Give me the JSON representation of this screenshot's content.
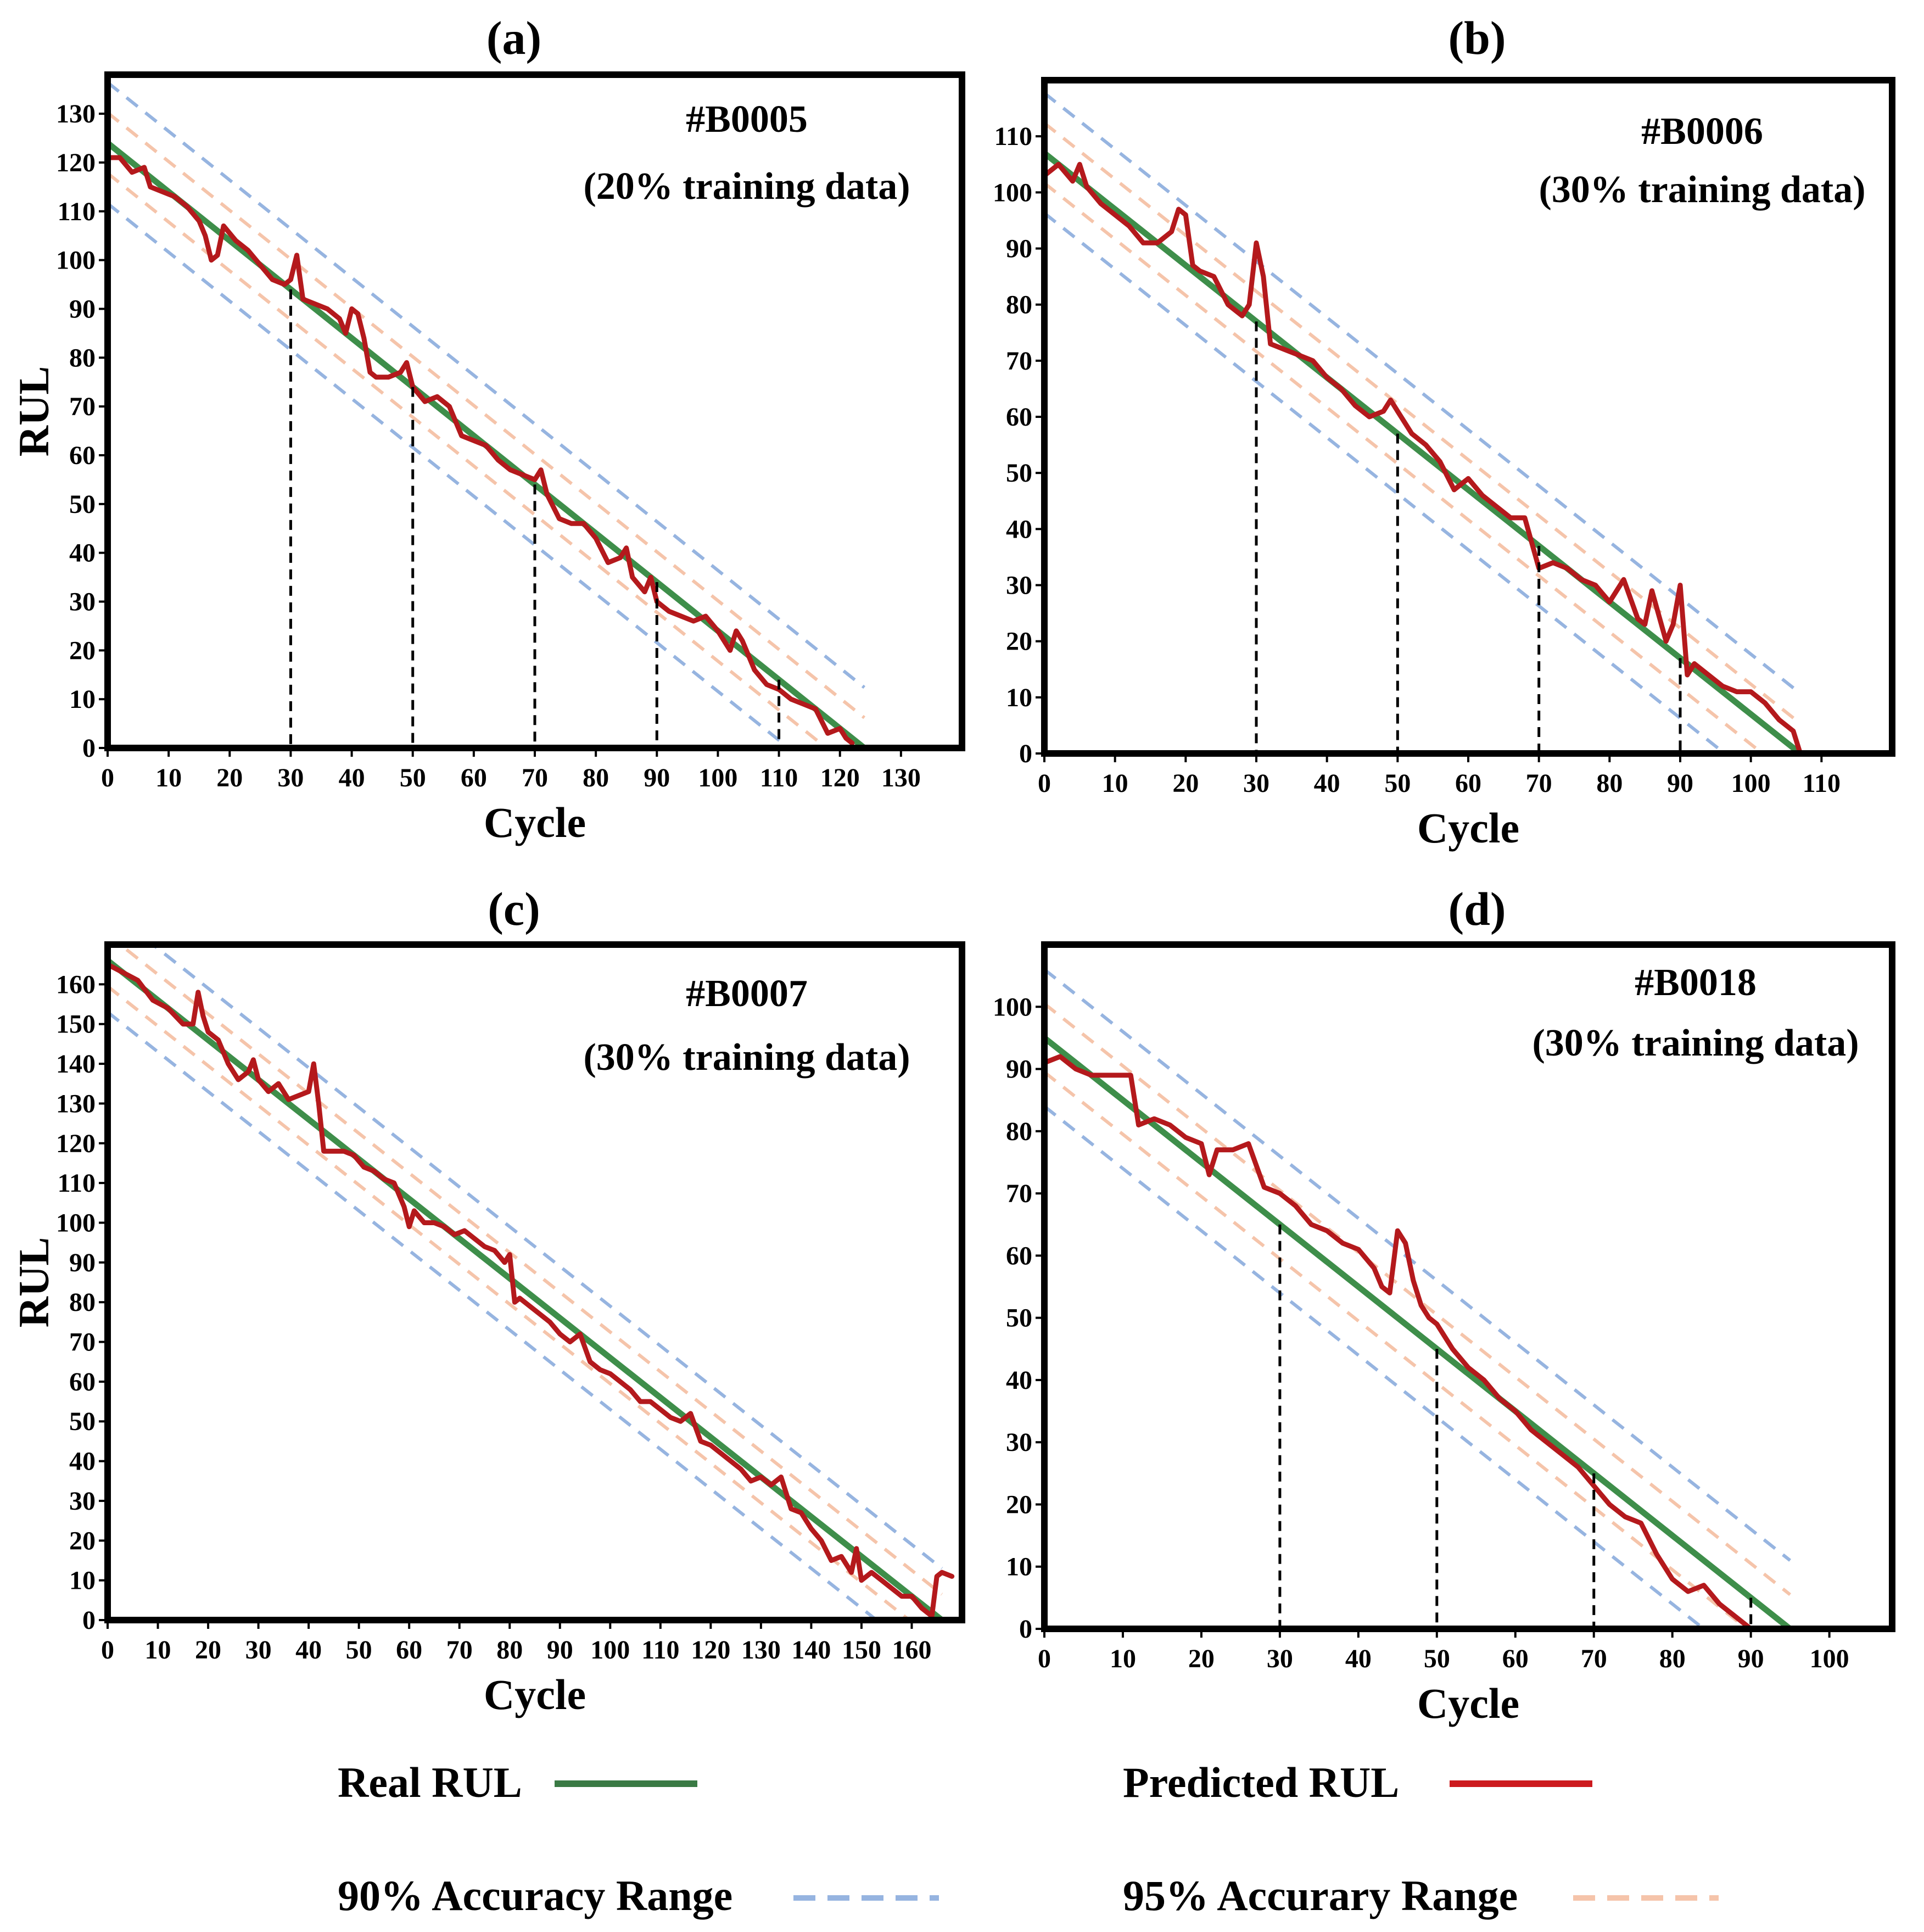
{
  "figure": {
    "legend": {
      "real_label": "Real RUL",
      "pred_label": "Predicted RUL",
      "range90_label": "90% Accuracy Range",
      "range95_label": "95% Accurary Range"
    },
    "colors": {
      "real": "#3e8e4a",
      "predicted": "#b4191c",
      "range90": "#96b4e0",
      "range95": "#f5c4aa"
    }
  },
  "chart_data": [
    {
      "type": "line",
      "panel": "(a)",
      "title": "#B0005",
      "subtitle": "(20% training data)",
      "xlabel": "Cycle",
      "ylabel": "RUL",
      "xlim": [
        0,
        140
      ],
      "ylim": [
        0,
        138
      ],
      "xticks": [
        0,
        10,
        20,
        30,
        40,
        50,
        60,
        70,
        80,
        90,
        100,
        110,
        120,
        130
      ],
      "yticks": [
        0,
        10,
        20,
        30,
        40,
        50,
        60,
        70,
        80,
        90,
        100,
        110,
        120,
        130
      ],
      "real": {
        "x": [
          0,
          124
        ],
        "y": [
          124,
          0
        ]
      },
      "range90": {
        "offset": 12.4
      },
      "range95": {
        "offset": 6.2
      },
      "drop_lines": [
        30,
        50,
        70,
        90,
        110
      ],
      "predicted": {
        "x": [
          0,
          2,
          4,
          6,
          7,
          9,
          11,
          13,
          15,
          16,
          17,
          18,
          19,
          21,
          23,
          25,
          27,
          29,
          30,
          31,
          32,
          34,
          36,
          38,
          39,
          40,
          41,
          42,
          43,
          44,
          46,
          48,
          49,
          50,
          52,
          54,
          56,
          58,
          60,
          62,
          64,
          66,
          68,
          70,
          71,
          72,
          74,
          76,
          78,
          80,
          82,
          84,
          85,
          86,
          88,
          89,
          90,
          92,
          94,
          96,
          98,
          100,
          102,
          103,
          104,
          106,
          108,
          110,
          112,
          114,
          116,
          118,
          120,
          121,
          122
        ],
        "y": [
          121,
          121,
          118,
          119,
          115,
          114,
          113,
          111,
          108,
          105,
          100,
          101,
          107,
          104,
          102,
          99,
          96,
          95,
          96,
          101,
          92,
          91,
          90,
          88,
          85,
          90,
          89,
          84,
          77,
          76,
          76,
          77,
          79,
          74,
          71,
          72,
          70,
          64,
          63,
          62,
          59,
          57,
          56,
          55,
          57,
          52,
          47,
          46,
          46,
          43,
          38,
          39,
          41,
          35,
          32,
          35,
          30,
          28,
          27,
          26,
          27,
          24,
          20,
          24,
          22,
          16,
          13,
          12,
          10,
          9,
          8,
          3,
          4,
          2,
          1
        ]
      }
    },
    {
      "type": "line",
      "panel": "(b)",
      "title": "#B0006",
      "subtitle": "(30% training data)",
      "xlabel": "Cycle",
      "ylabel": "",
      "xlim": [
        0,
        120
      ],
      "ylim": [
        0,
        120
      ],
      "xticks": [
        0,
        10,
        20,
        30,
        40,
        50,
        60,
        70,
        80,
        90,
        100,
        110
      ],
      "yticks": [
        0,
        10,
        20,
        30,
        40,
        50,
        60,
        70,
        80,
        90,
        100,
        110
      ],
      "real": {
        "x": [
          0,
          107
        ],
        "y": [
          107,
          0
        ]
      },
      "range90": {
        "offset": 10.7
      },
      "range95": {
        "offset": 5.35
      },
      "drop_lines": [
        30,
        50,
        70,
        90
      ],
      "predicted": {
        "x": [
          0,
          2,
          4,
          5,
          6,
          8,
          10,
          12,
          14,
          16,
          18,
          19,
          20,
          21,
          22,
          24,
          26,
          28,
          29,
          30,
          31,
          32,
          34,
          36,
          38,
          40,
          42,
          44,
          46,
          48,
          49,
          50,
          52,
          54,
          56,
          58,
          60,
          62,
          64,
          66,
          68,
          70,
          72,
          74,
          76,
          78,
          80,
          82,
          84,
          85,
          86,
          88,
          89,
          90,
          91,
          92,
          94,
          96,
          98,
          100,
          102,
          104,
          105,
          106,
          107
        ],
        "y": [
          103,
          105,
          102,
          105,
          101,
          98,
          96,
          94,
          91,
          91,
          93,
          97,
          96,
          87,
          86,
          85,
          80,
          78,
          80,
          91,
          85,
          73,
          72,
          71,
          70,
          67,
          65,
          62,
          60,
          61,
          63,
          61,
          57,
          55,
          52,
          47,
          49,
          46,
          44,
          42,
          42,
          33,
          34,
          33,
          31,
          30,
          27,
          31,
          24,
          23,
          29,
          20,
          23,
          30,
          14,
          16,
          14,
          12,
          11,
          11,
          9,
          6,
          5,
          4,
          0
        ]
      }
    },
    {
      "type": "line",
      "panel": "(c)",
      "title": "#B0007",
      "subtitle": "(30% training data)",
      "xlabel": "Cycle",
      "ylabel": "RUL",
      "xlim": [
        0,
        170
      ],
      "ylim": [
        0,
        170
      ],
      "xticks": [
        0,
        10,
        20,
        30,
        40,
        50,
        60,
        70,
        80,
        90,
        100,
        110,
        120,
        130,
        140,
        150,
        160
      ],
      "yticks": [
        0,
        10,
        20,
        30,
        40,
        50,
        60,
        70,
        80,
        90,
        100,
        110,
        120,
        130,
        140,
        150,
        160
      ],
      "real": {
        "x": [
          0,
          166
        ],
        "y": [
          166,
          0
        ]
      },
      "range90": {
        "offset": 13
      },
      "range95": {
        "offset": 6.5
      },
      "drop_lines": [],
      "predicted": {
        "x": [
          0,
          3,
          6,
          9,
          12,
          15,
          17,
          18,
          19,
          20,
          22,
          24,
          26,
          28,
          29,
          30,
          32,
          34,
          36,
          38,
          40,
          41,
          42,
          43,
          45,
          47,
          49,
          51,
          53,
          55,
          57,
          59,
          60,
          61,
          63,
          65,
          67,
          69,
          71,
          73,
          75,
          77,
          79,
          80,
          81,
          82,
          84,
          86,
          88,
          90,
          92,
          94,
          96,
          98,
          100,
          102,
          104,
          106,
          108,
          110,
          112,
          114,
          116,
          118,
          120,
          122,
          124,
          126,
          128,
          130,
          132,
          134,
          136,
          138,
          140,
          142,
          144,
          146,
          148,
          149,
          150,
          152,
          154,
          156,
          158,
          160,
          162,
          164,
          165,
          166,
          168
        ],
        "y": [
          165,
          163,
          161,
          156,
          154,
          150,
          150,
          158,
          152,
          148,
          146,
          140,
          136,
          138,
          141,
          136,
          133,
          135,
          131,
          132,
          133,
          140,
          130,
          118,
          118,
          118,
          117,
          114,
          113,
          111,
          110,
          104,
          99,
          103,
          100,
          100,
          99,
          97,
          98,
          96,
          94,
          93,
          90,
          92,
          80,
          81,
          79,
          77,
          75,
          72,
          70,
          72,
          65,
          63,
          62,
          60,
          58,
          55,
          55,
          53,
          51,
          50,
          52,
          45,
          44,
          42,
          40,
          38,
          35,
          36,
          34,
          36,
          28,
          27,
          23,
          20,
          15,
          16,
          12,
          18,
          10,
          12,
          10,
          8,
          6,
          6,
          3,
          1,
          11,
          12,
          11
        ]
      }
    },
    {
      "type": "line",
      "panel": "(d)",
      "title": "#B0018",
      "subtitle": "(30% training data)",
      "xlabel": "Cycle",
      "ylabel": "",
      "xlim": [
        0,
        108
      ],
      "ylim": [
        0,
        110
      ],
      "xticks": [
        0,
        10,
        20,
        30,
        40,
        50,
        60,
        70,
        80,
        90,
        100
      ],
      "yticks": [
        0,
        10,
        20,
        30,
        40,
        50,
        60,
        70,
        80,
        90,
        100
      ],
      "real": {
        "x": [
          0,
          95
        ],
        "y": [
          95,
          0
        ]
      },
      "range90": {
        "offset": 11
      },
      "range95": {
        "offset": 5.5
      },
      "drop_lines": [
        30,
        50,
        70,
        90
      ],
      "predicted": {
        "x": [
          0,
          2,
          4,
          6,
          8,
          10,
          11,
          12,
          14,
          16,
          18,
          20,
          21,
          22,
          24,
          26,
          28,
          30,
          32,
          34,
          36,
          38,
          40,
          42,
          43,
          44,
          45,
          46,
          47,
          48,
          49,
          50,
          52,
          54,
          56,
          58,
          60,
          62,
          64,
          66,
          68,
          70,
          72,
          74,
          76,
          78,
          80,
          82,
          84,
          86,
          88,
          90
        ],
        "y": [
          91,
          92,
          90,
          89,
          89,
          89,
          89,
          81,
          82,
          81,
          79,
          78,
          73,
          77,
          77,
          78,
          71,
          70,
          68,
          65,
          64,
          62,
          61,
          58,
          55,
          54,
          64,
          62,
          56,
          52,
          50,
          49,
          45,
          42,
          40,
          37,
          35,
          32,
          30,
          28,
          26,
          23,
          20,
          18,
          17,
          12,
          8,
          6,
          7,
          4,
          2,
          0
        ]
      }
    }
  ]
}
